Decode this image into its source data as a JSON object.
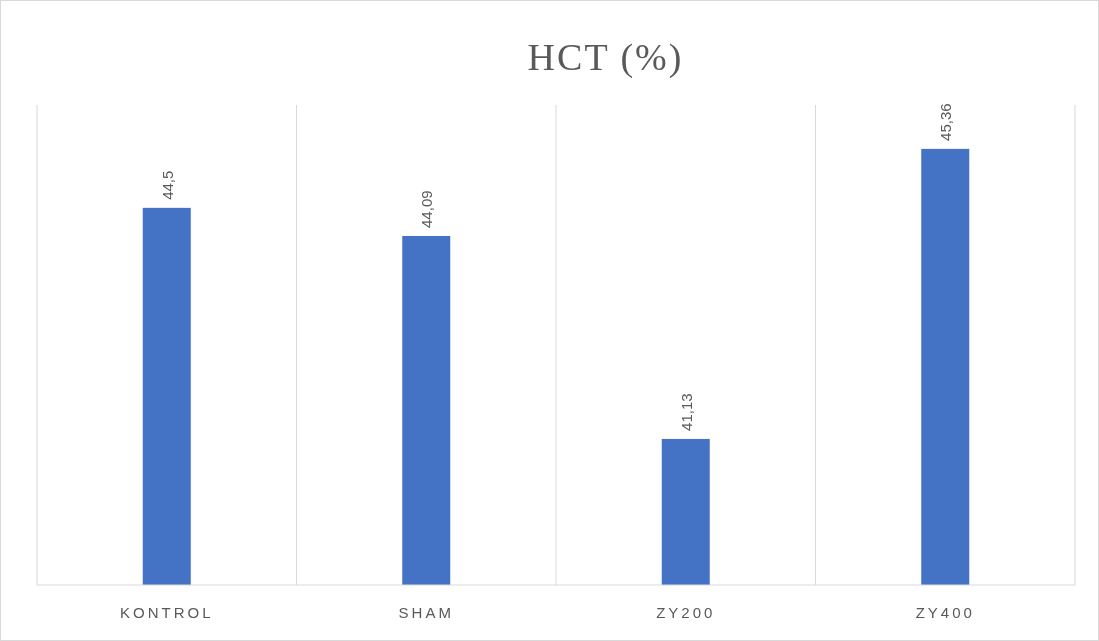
{
  "chart_data": {
    "type": "bar",
    "title": "HCT (%)",
    "categories": [
      "KONTROL",
      "SHAM",
      "ZY200",
      "ZY400"
    ],
    "values": [
      44.5,
      44.09,
      41.13,
      45.36
    ],
    "value_labels": [
      "44,5",
      "44,09",
      "41,13",
      "45,36"
    ],
    "color": "#4472c4",
    "ylim": [
      39,
      46
    ],
    "grid": "x",
    "tick_labels": "x"
  }
}
